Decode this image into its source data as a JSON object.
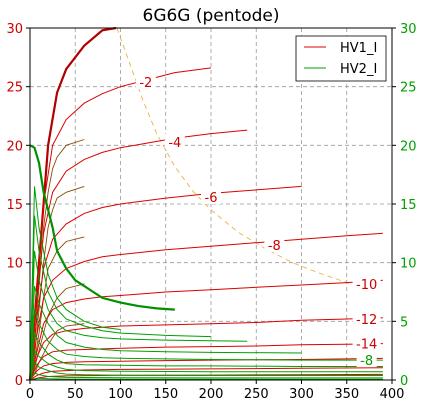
{
  "chart_data": {
    "type": "line",
    "title": "6G6G (pentode)",
    "xlabel": "",
    "ylabel": "",
    "xlim": [
      0,
      400
    ],
    "ylim": [
      0,
      30
    ],
    "x_ticks": [
      "0",
      "50",
      "100",
      "150",
      "200",
      "250",
      "300",
      "350",
      "400"
    ],
    "y_ticks": [
      "0",
      "5",
      "10",
      "15",
      "20",
      "25",
      "30"
    ],
    "grid": true,
    "legend": {
      "placement": "top-right",
      "entries": [
        "HV1_I",
        "HV2_I"
      ]
    },
    "colors": {
      "hv1": "#dd0000",
      "hv2": "#00a000",
      "hv1_dark": "#b00000",
      "hv2_dark": "#009000",
      "family": "#8a4a00",
      "dissipation": "#f0b040",
      "grid": "#999999",
      "left_axis_text": "#cc0000",
      "right_axis_text": "#00a000"
    },
    "series": [
      {
        "name": "HV1_I",
        "role": "main",
        "x": [
          0,
          10,
          20,
          30,
          40,
          60,
          80,
          95
        ],
        "y": [
          0,
          10,
          20,
          24.5,
          26.5,
          28.5,
          29.8,
          30.5
        ]
      },
      {
        "name": "HV1_I",
        "role": "plate",
        "x": [
          0,
          8,
          15,
          25,
          40,
          60,
          80,
          100,
          130,
          160,
          200
        ],
        "y": [
          0,
          8,
          15,
          20,
          22.2,
          23.6,
          24.4,
          25,
          25.6,
          26.2,
          26.6
        ]
      },
      {
        "name": "HV1_I",
        "role": "plate",
        "x": [
          0,
          8,
          15,
          25,
          40,
          60,
          80,
          100,
          130,
          160,
          200,
          240
        ],
        "y": [
          0,
          7,
          12.5,
          16,
          17.8,
          18.8,
          19.4,
          19.8,
          20.2,
          20.6,
          21,
          21.3
        ]
      },
      {
        "name": "HV1_I",
        "role": "plate",
        "x": [
          0,
          8,
          15,
          25,
          40,
          60,
          80,
          100,
          150,
          200,
          250,
          300
        ],
        "y": [
          0,
          5.5,
          9.5,
          12,
          13.3,
          14.2,
          14.7,
          15,
          15.5,
          15.9,
          16.2,
          16.5
        ]
      },
      {
        "name": "HV1_I",
        "role": "plate",
        "x": [
          0,
          8,
          15,
          25,
          40,
          60,
          80,
          100,
          150,
          200,
          250,
          300,
          350,
          390
        ],
        "y": [
          0,
          4,
          7,
          8.5,
          9.5,
          10.1,
          10.5,
          10.7,
          11.1,
          11.4,
          11.7,
          12,
          12.3,
          12.5
        ]
      },
      {
        "name": "HV1_I",
        "role": "plate",
        "x": [
          0,
          8,
          15,
          25,
          40,
          60,
          80,
          100,
          150,
          200,
          250,
          300,
          350,
          390
        ],
        "y": [
          0,
          2.5,
          4.8,
          6,
          6.6,
          6.9,
          7.1,
          7.2,
          7.5,
          7.7,
          7.9,
          8.1,
          8.3,
          8.5
        ]
      },
      {
        "name": "HV1_I",
        "role": "plate",
        "x": [
          0,
          8,
          15,
          25,
          40,
          60,
          80,
          100,
          150,
          200,
          250,
          300,
          350,
          390
        ],
        "y": [
          0,
          2,
          3.2,
          3.9,
          4.2,
          4.4,
          4.5,
          4.6,
          4.7,
          4.8,
          4.9,
          5.1,
          5.2,
          5.3
        ]
      },
      {
        "name": "HV1_I",
        "role": "plate",
        "x": [
          0,
          8,
          15,
          25,
          40,
          60,
          80,
          100,
          150,
          200,
          250,
          300,
          350,
          390
        ],
        "y": [
          0,
          1.3,
          2,
          2.4,
          2.55,
          2.6,
          2.65,
          2.7,
          2.8,
          2.85,
          2.9,
          3,
          3.05,
          3.1
        ]
      },
      {
        "name": "HV1_I",
        "role": "plate",
        "x": [
          0,
          8,
          15,
          25,
          40,
          60,
          100,
          150,
          200,
          250,
          300,
          350,
          390
        ],
        "y": [
          0,
          0.8,
          1.2,
          1.4,
          1.5,
          1.55,
          1.6,
          1.65,
          1.7,
          1.72,
          1.75,
          1.8,
          1.85
        ]
      },
      {
        "name": "HV1_I",
        "role": "plate",
        "x": [
          0,
          8,
          15,
          25,
          40,
          60,
          100,
          200,
          300,
          390
        ],
        "y": [
          0,
          0.4,
          0.6,
          0.75,
          0.8,
          0.85,
          0.9,
          0.95,
          1,
          1.05
        ]
      },
      {
        "name": "HV1_I",
        "role": "plate",
        "x": [
          0,
          10,
          20,
          40,
          100,
          200,
          300,
          390
        ],
        "y": [
          0,
          0.2,
          0.3,
          0.35,
          0.4,
          0.42,
          0.45,
          0.48
        ]
      },
      {
        "name": "HV2_I",
        "role": "main",
        "x": [
          0,
          5,
          10,
          15,
          20,
          25,
          30,
          40,
          50,
          60,
          70,
          80,
          100,
          120,
          140,
          160
        ],
        "y": [
          20,
          19.8,
          18.5,
          16,
          14.5,
          13,
          11,
          9.5,
          8.5,
          8,
          7.5,
          7,
          6.6,
          6.3,
          6.1,
          6
        ]
      },
      {
        "name": "HV2_I",
        "role": "screen",
        "x": [
          0,
          5,
          10,
          20,
          30,
          40,
          60,
          80,
          100
        ],
        "y": [
          0,
          16.5,
          13,
          9,
          7,
          6,
          5,
          4.5,
          4.3
        ]
      },
      {
        "name": "HV2_I",
        "role": "screen",
        "x": [
          0,
          5,
          10,
          20,
          30,
          40,
          60,
          80,
          100,
          150,
          200
        ],
        "y": [
          0,
          14,
          11,
          7.5,
          6,
          5.2,
          4.6,
          4.2,
          4,
          3.8,
          3.7
        ]
      },
      {
        "name": "HV2_I",
        "role": "screen",
        "x": [
          0,
          5,
          10,
          20,
          30,
          40,
          60,
          80,
          100,
          150,
          200,
          240
        ],
        "y": [
          0,
          11,
          8.5,
          6,
          4.8,
          4.2,
          3.8,
          3.6,
          3.5,
          3.4,
          3.35,
          3.3
        ]
      },
      {
        "name": "HV2_I",
        "role": "screen",
        "x": [
          0,
          5,
          10,
          20,
          30,
          40,
          60,
          80,
          100,
          150,
          200,
          300
        ],
        "y": [
          0,
          8,
          6.5,
          4.8,
          3.8,
          3.2,
          2.8,
          2.6,
          2.5,
          2.4,
          2.35,
          2.3
        ]
      },
      {
        "name": "HV2_I",
        "role": "screen",
        "x": [
          0,
          5,
          10,
          20,
          30,
          40,
          60,
          80,
          100,
          150,
          200,
          300,
          390
        ],
        "y": [
          0,
          6,
          4.8,
          3.3,
          2.6,
          2.2,
          2,
          1.9,
          1.85,
          1.8,
          1.75,
          1.7,
          1.7
        ]
      },
      {
        "name": "HV2_I",
        "role": "screen",
        "x": [
          0,
          5,
          10,
          20,
          30,
          40,
          60,
          100,
          150,
          200,
          300,
          390
        ],
        "y": [
          0,
          4,
          3.2,
          2.2,
          1.7,
          1.4,
          1.3,
          1.25,
          1.2,
          1.2,
          1.15,
          1.15
        ]
      },
      {
        "name": "HV2_I",
        "role": "screen",
        "x": [
          0,
          5,
          10,
          20,
          30,
          40,
          60,
          100,
          200,
          300,
          390
        ],
        "y": [
          0,
          2.5,
          2,
          1.4,
          1.1,
          0.9,
          0.8,
          0.75,
          0.7,
          0.7,
          0.7
        ]
      },
      {
        "name": "HV2_I",
        "role": "screen",
        "x": [
          0,
          5,
          10,
          20,
          30,
          40,
          60,
          100,
          200,
          300,
          390
        ],
        "y": [
          0,
          1.5,
          1.1,
          0.8,
          0.6,
          0.5,
          0.45,
          0.4,
          0.38,
          0.38,
          0.38
        ]
      },
      {
        "name": "HV2_I",
        "role": "screen",
        "x": [
          0,
          5,
          10,
          20,
          40,
          100,
          200,
          300,
          390
        ],
        "y": [
          0,
          0.6,
          0.45,
          0.3,
          0.22,
          0.2,
          0.18,
          0.18,
          0.18
        ]
      },
      {
        "name": "HV2_I",
        "role": "screen",
        "x": [
          0,
          10,
          20,
          40,
          100,
          200,
          300,
          390
        ],
        "y": [
          0,
          0.15,
          0.1,
          0.08,
          0.07,
          0.06,
          0.06,
          0.06
        ]
      }
    ],
    "family_curves": [
      {
        "x": [
          0,
          5,
          10,
          15,
          20,
          25,
          30,
          40,
          60
        ],
        "y": [
          0,
          3,
          8,
          13,
          16,
          18,
          19,
          20,
          20.5
        ]
      },
      {
        "x": [
          0,
          5,
          10,
          15,
          20,
          25,
          30,
          40,
          60
        ],
        "y": [
          0,
          2,
          6,
          10,
          13,
          14.5,
          15.5,
          16,
          16.5
        ]
      },
      {
        "x": [
          0,
          5,
          10,
          15,
          20,
          30,
          40,
          60
        ],
        "y": [
          0,
          1.5,
          4,
          7,
          9.5,
          11,
          11.8,
          12.2
        ]
      },
      {
        "x": [
          0,
          5,
          10,
          20,
          30,
          40,
          60
        ],
        "y": [
          0,
          1,
          2.5,
          5.5,
          7,
          7.8,
          8.2
        ]
      },
      {
        "x": [
          0,
          5,
          10,
          20,
          30,
          40,
          60
        ],
        "y": [
          0,
          0.5,
          1.5,
          3,
          4.2,
          4.6,
          4.8
        ]
      }
    ],
    "dissipation_curve": {
      "x": [
        96,
        110,
        125,
        140,
        160,
        180,
        200,
        230,
        260,
        290,
        320,
        350,
        380
      ],
      "y": [
        30.5,
        27,
        23.8,
        21,
        18.2,
        16.1,
        14.5,
        12.6,
        11.2,
        10,
        9.1,
        8.3,
        7.6
      ]
    },
    "annotations": [
      {
        "text": "-2",
        "x": 128,
        "y": 25.4,
        "color": "#cc0000"
      },
      {
        "text": "-4",
        "x": 160,
        "y": 20.3,
        "color": "#cc0000"
      },
      {
        "text": "-6",
        "x": 200,
        "y": 15.6,
        "color": "#cc0000"
      },
      {
        "text": "-8",
        "x": 270,
        "y": 11.5,
        "color": "#cc0000"
      },
      {
        "text": "-10",
        "x": 372,
        "y": 8.2,
        "color": "#cc0000"
      },
      {
        "text": "-12",
        "x": 372,
        "y": 5.2,
        "color": "#cc0000"
      },
      {
        "text": "-14",
        "x": 372,
        "y": 3.1,
        "color": "#cc0000"
      },
      {
        "text": "-8",
        "x": 372,
        "y": 1.7,
        "color": "#00a000"
      }
    ]
  }
}
